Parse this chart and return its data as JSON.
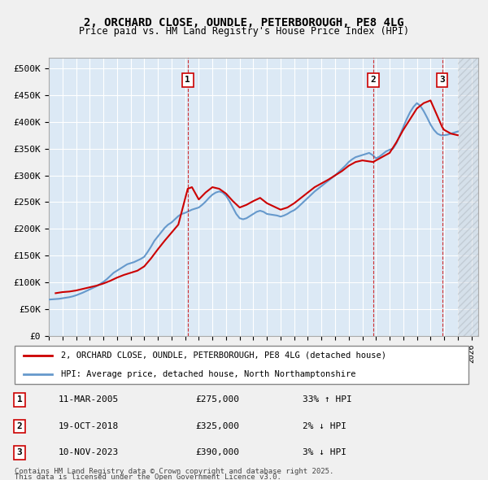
{
  "title_line1": "2, ORCHARD CLOSE, OUNDLE, PETERBOROUGH, PE8 4LG",
  "title_line2": "Price paid vs. HM Land Registry's House Price Index (HPI)",
  "xlabel": "",
  "ylabel": "",
  "ylim": [
    0,
    520000
  ],
  "yticks": [
    0,
    50000,
    100000,
    150000,
    200000,
    250000,
    300000,
    350000,
    400000,
    450000,
    500000
  ],
  "ytick_labels": [
    "£0",
    "£50K",
    "£100K",
    "£150K",
    "£200K",
    "£250K",
    "£300K",
    "£350K",
    "£400K",
    "£450K",
    "£500K"
  ],
  "xlim_start": 1995.0,
  "xlim_end": 2026.5,
  "background_color": "#dce9f5",
  "plot_bg_color": "#dce9f5",
  "grid_color": "#ffffff",
  "hatch_color": "#c0c8d0",
  "sale_color": "#cc0000",
  "hpi_color": "#6699cc",
  "legend_label_sale": "2, ORCHARD CLOSE, OUNDLE, PETERBOROUGH, PE8 4LG (detached house)",
  "legend_label_hpi": "HPI: Average price, detached house, North Northamptonshire",
  "transactions": [
    {
      "num": 1,
      "date": "11-MAR-2005",
      "price": 275000,
      "pct": "33%",
      "dir": "↑",
      "year": 2005.19
    },
    {
      "num": 2,
      "date": "19-OCT-2018",
      "price": 325000,
      "pct": "2%",
      "dir": "↓",
      "year": 2018.8
    },
    {
      "num": 3,
      "date": "10-NOV-2023",
      "price": 390000,
      "pct": "3%",
      "dir": "↓",
      "year": 2023.86
    }
  ],
  "footer_line1": "Contains HM Land Registry data © Crown copyright and database right 2025.",
  "footer_line2": "This data is licensed under the Open Government Licence v3.0.",
  "hpi_data_x": [
    1995.0,
    1995.25,
    1995.5,
    1995.75,
    1996.0,
    1996.25,
    1996.5,
    1996.75,
    1997.0,
    1997.25,
    1997.5,
    1997.75,
    1998.0,
    1998.25,
    1998.5,
    1998.75,
    1999.0,
    1999.25,
    1999.5,
    1999.75,
    2000.0,
    2000.25,
    2000.5,
    2000.75,
    2001.0,
    2001.25,
    2001.5,
    2001.75,
    2002.0,
    2002.25,
    2002.5,
    2002.75,
    2003.0,
    2003.25,
    2003.5,
    2003.75,
    2004.0,
    2004.25,
    2004.5,
    2004.75,
    2005.0,
    2005.25,
    2005.5,
    2005.75,
    2006.0,
    2006.25,
    2006.5,
    2006.75,
    2007.0,
    2007.25,
    2007.5,
    2007.75,
    2008.0,
    2008.25,
    2008.5,
    2008.75,
    2009.0,
    2009.25,
    2009.5,
    2009.75,
    2010.0,
    2010.25,
    2010.5,
    2010.75,
    2011.0,
    2011.25,
    2011.5,
    2011.75,
    2012.0,
    2012.25,
    2012.5,
    2012.75,
    2013.0,
    2013.25,
    2013.5,
    2013.75,
    2014.0,
    2014.25,
    2014.5,
    2014.75,
    2015.0,
    2015.25,
    2015.5,
    2015.75,
    2016.0,
    2016.25,
    2016.5,
    2016.75,
    2017.0,
    2017.25,
    2017.5,
    2017.75,
    2018.0,
    2018.25,
    2018.5,
    2018.75,
    2019.0,
    2019.25,
    2019.5,
    2019.75,
    2020.0,
    2020.25,
    2020.5,
    2020.75,
    2021.0,
    2021.25,
    2021.5,
    2021.75,
    2022.0,
    2022.25,
    2022.5,
    2022.75,
    2023.0,
    2023.25,
    2023.5,
    2023.75,
    2024.0,
    2024.25,
    2024.5,
    2024.75,
    2025.0
  ],
  "hpi_data_y": [
    68000,
    68500,
    69000,
    69500,
    70500,
    71500,
    72500,
    74000,
    76000,
    78500,
    81000,
    84000,
    87000,
    90000,
    93000,
    97000,
    101000,
    106000,
    112000,
    118000,
    122000,
    126000,
    130000,
    134000,
    136000,
    138000,
    141000,
    144000,
    148000,
    157000,
    167000,
    178000,
    186000,
    194000,
    202000,
    208000,
    212000,
    218000,
    224000,
    228000,
    230000,
    233000,
    236000,
    238000,
    240000,
    245000,
    251000,
    258000,
    264000,
    268000,
    270000,
    268000,
    262000,
    252000,
    240000,
    228000,
    220000,
    218000,
    220000,
    224000,
    228000,
    232000,
    234000,
    232000,
    228000,
    227000,
    226000,
    225000,
    223000,
    225000,
    228000,
    232000,
    235000,
    240000,
    246000,
    252000,
    258000,
    264000,
    270000,
    275000,
    280000,
    285000,
    290000,
    295000,
    300000,
    306000,
    312000,
    318000,
    325000,
    330000,
    334000,
    336000,
    338000,
    340000,
    342000,
    338000,
    332000,
    335000,
    340000,
    345000,
    348000,
    350000,
    360000,
    375000,
    390000,
    405000,
    418000,
    428000,
    435000,
    430000,
    420000,
    408000,
    395000,
    385000,
    378000,
    375000,
    375000,
    376000,
    378000,
    380000,
    382000
  ],
  "sale_data_x": [
    1995.5,
    1996.0,
    1996.5,
    1997.0,
    1997.5,
    1998.0,
    1998.5,
    1999.0,
    1999.5,
    2000.0,
    2000.5,
    2001.0,
    2001.5,
    2002.0,
    2002.5,
    2003.0,
    2003.5,
    2004.0,
    2004.5,
    2005.19,
    2005.5,
    2006.0,
    2006.5,
    2007.0,
    2007.5,
    2008.0,
    2008.5,
    2009.0,
    2009.5,
    2010.0,
    2010.5,
    2011.0,
    2011.5,
    2012.0,
    2012.5,
    2013.0,
    2013.5,
    2014.0,
    2014.5,
    2015.0,
    2015.5,
    2016.0,
    2016.5,
    2017.0,
    2017.5,
    2018.0,
    2018.8,
    2019.0,
    2019.5,
    2020.0,
    2020.5,
    2021.0,
    2021.5,
    2022.0,
    2022.5,
    2023.0,
    2023.86,
    2024.0,
    2024.5,
    2025.0
  ],
  "sale_data_y": [
    80000,
    82000,
    83000,
    85000,
    88000,
    91000,
    94000,
    98000,
    103000,
    109000,
    114000,
    118000,
    122000,
    130000,
    145000,
    162000,
    178000,
    193000,
    208000,
    275000,
    278000,
    255000,
    268000,
    278000,
    275000,
    266000,
    252000,
    240000,
    245000,
    252000,
    258000,
    248000,
    242000,
    236000,
    240000,
    248000,
    258000,
    268000,
    278000,
    285000,
    292000,
    300000,
    308000,
    318000,
    325000,
    328000,
    325000,
    328000,
    335000,
    342000,
    362000,
    385000,
    405000,
    425000,
    435000,
    440000,
    390000,
    385000,
    378000,
    375000
  ]
}
